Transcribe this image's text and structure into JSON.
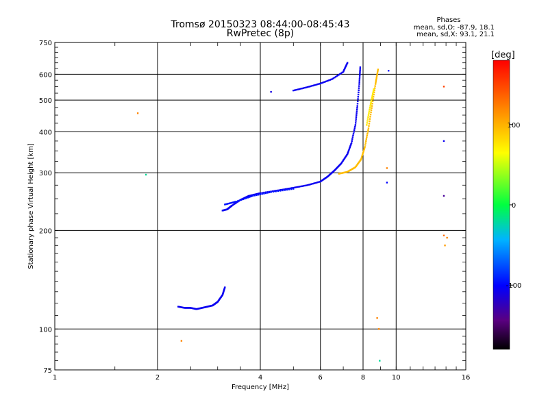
{
  "chart_data": {
    "type": "scatter",
    "title": "Tromsø 20150323 08:44:00-08:45:43",
    "subtitle": "RwPretec (8p)",
    "xlabel": "Frequency [MHz]",
    "ylabel": "Stationary phase Virtual Height [km]",
    "x_scale": "log2",
    "y_scale": "log",
    "xlim": [
      1,
      16
    ],
    "ylim": [
      75,
      750
    ],
    "x_ticks": [
      1,
      2,
      4,
      6,
      8,
      10,
      16
    ],
    "x_tick_labels": [
      "1",
      "2",
      "4",
      "6",
      "8",
      "10",
      "16"
    ],
    "y_ticks": [
      75,
      100,
      200,
      300,
      400,
      500,
      600,
      750
    ],
    "y_tick_labels": [
      "75",
      "100",
      "200",
      "300",
      "400",
      "500",
      "600",
      "750"
    ],
    "grid": true,
    "phases_box": {
      "title": "Phases",
      "line_o": "mean, sd,O: -87.9, 18.1",
      "line_x": "mean, sd,X:  93.1, 21.1"
    },
    "colorbar": {
      "label": "[deg]",
      "range": [
        -180,
        180
      ],
      "ticks": [
        100,
        0,
        -100
      ],
      "tick_labels": [
        "100",
        "0",
        "-100"
      ]
    },
    "traces": [
      {
        "phase": -105,
        "points": [
          [
            2.3,
            117
          ],
          [
            2.4,
            116
          ],
          [
            2.5,
            116
          ],
          [
            2.6,
            115
          ],
          [
            2.7,
            116
          ],
          [
            2.8,
            117
          ],
          [
            2.9,
            118
          ],
          [
            3.0,
            121
          ],
          [
            3.1,
            127
          ],
          [
            3.15,
            134
          ]
        ]
      },
      {
        "phase": -105,
        "points": [
          [
            3.1,
            230
          ],
          [
            3.2,
            232
          ],
          [
            3.3,
            238
          ],
          [
            3.5,
            248
          ],
          [
            3.7,
            255
          ],
          [
            4.0,
            260
          ],
          [
            4.5,
            265
          ],
          [
            5.0,
            270
          ],
          [
            5.5,
            275
          ],
          [
            6.0,
            282
          ],
          [
            6.3,
            292
          ],
          [
            6.6,
            305
          ],
          [
            6.9,
            320
          ],
          [
            7.2,
            342
          ],
          [
            7.4,
            370
          ],
          [
            7.6,
            420
          ],
          [
            7.7,
            480
          ],
          [
            7.8,
            560
          ],
          [
            7.85,
            630
          ]
        ]
      },
      {
        "phase": -95,
        "points": [
          [
            3.15,
            240
          ],
          [
            3.4,
            245
          ],
          [
            3.8,
            255
          ],
          [
            4.3,
            262
          ],
          [
            5.0,
            268
          ]
        ]
      },
      {
        "phase": -105,
        "points": [
          [
            5.0,
            535
          ],
          [
            5.5,
            548
          ],
          [
            6.0,
            562
          ],
          [
            6.5,
            580
          ],
          [
            7.0,
            610
          ],
          [
            7.2,
            650
          ]
        ]
      },
      {
        "phase": 95,
        "points": [
          [
            6.8,
            298
          ],
          [
            7.2,
            302
          ],
          [
            7.6,
            312
          ],
          [
            7.9,
            330
          ],
          [
            8.1,
            360
          ],
          [
            8.3,
            410
          ],
          [
            8.5,
            480
          ],
          [
            8.7,
            560
          ],
          [
            8.85,
            620
          ]
        ]
      },
      {
        "phase": 75,
        "points": [
          [
            8.2,
            420
          ],
          [
            8.4,
            480
          ],
          [
            8.6,
            540
          ]
        ]
      }
    ],
    "scatter_points": [
      {
        "x": 1.75,
        "y": 456,
        "phase": 120
      },
      {
        "x": 1.85,
        "y": 296,
        "phase": -20
      },
      {
        "x": 2.35,
        "y": 92,
        "phase": 120
      },
      {
        "x": 4.3,
        "y": 530,
        "phase": -110
      },
      {
        "x": 8.8,
        "y": 108,
        "phase": 120
      },
      {
        "x": 8.9,
        "y": 100,
        "phase": 120
      },
      {
        "x": 8.95,
        "y": 80,
        "phase": -20
      },
      {
        "x": 9.4,
        "y": 310,
        "phase": 120
      },
      {
        "x": 9.4,
        "y": 280,
        "phase": -100
      },
      {
        "x": 9.5,
        "y": 615,
        "phase": -100
      },
      {
        "x": 13.8,
        "y": 550,
        "phase": 150
      },
      {
        "x": 13.8,
        "y": 375,
        "phase": -105
      },
      {
        "x": 13.8,
        "y": 255,
        "phase": -135
      },
      {
        "x": 13.8,
        "y": 193,
        "phase": 130
      },
      {
        "x": 14.1,
        "y": 190,
        "phase": 120
      },
      {
        "x": 13.9,
        "y": 180,
        "phase": 110
      }
    ]
  }
}
